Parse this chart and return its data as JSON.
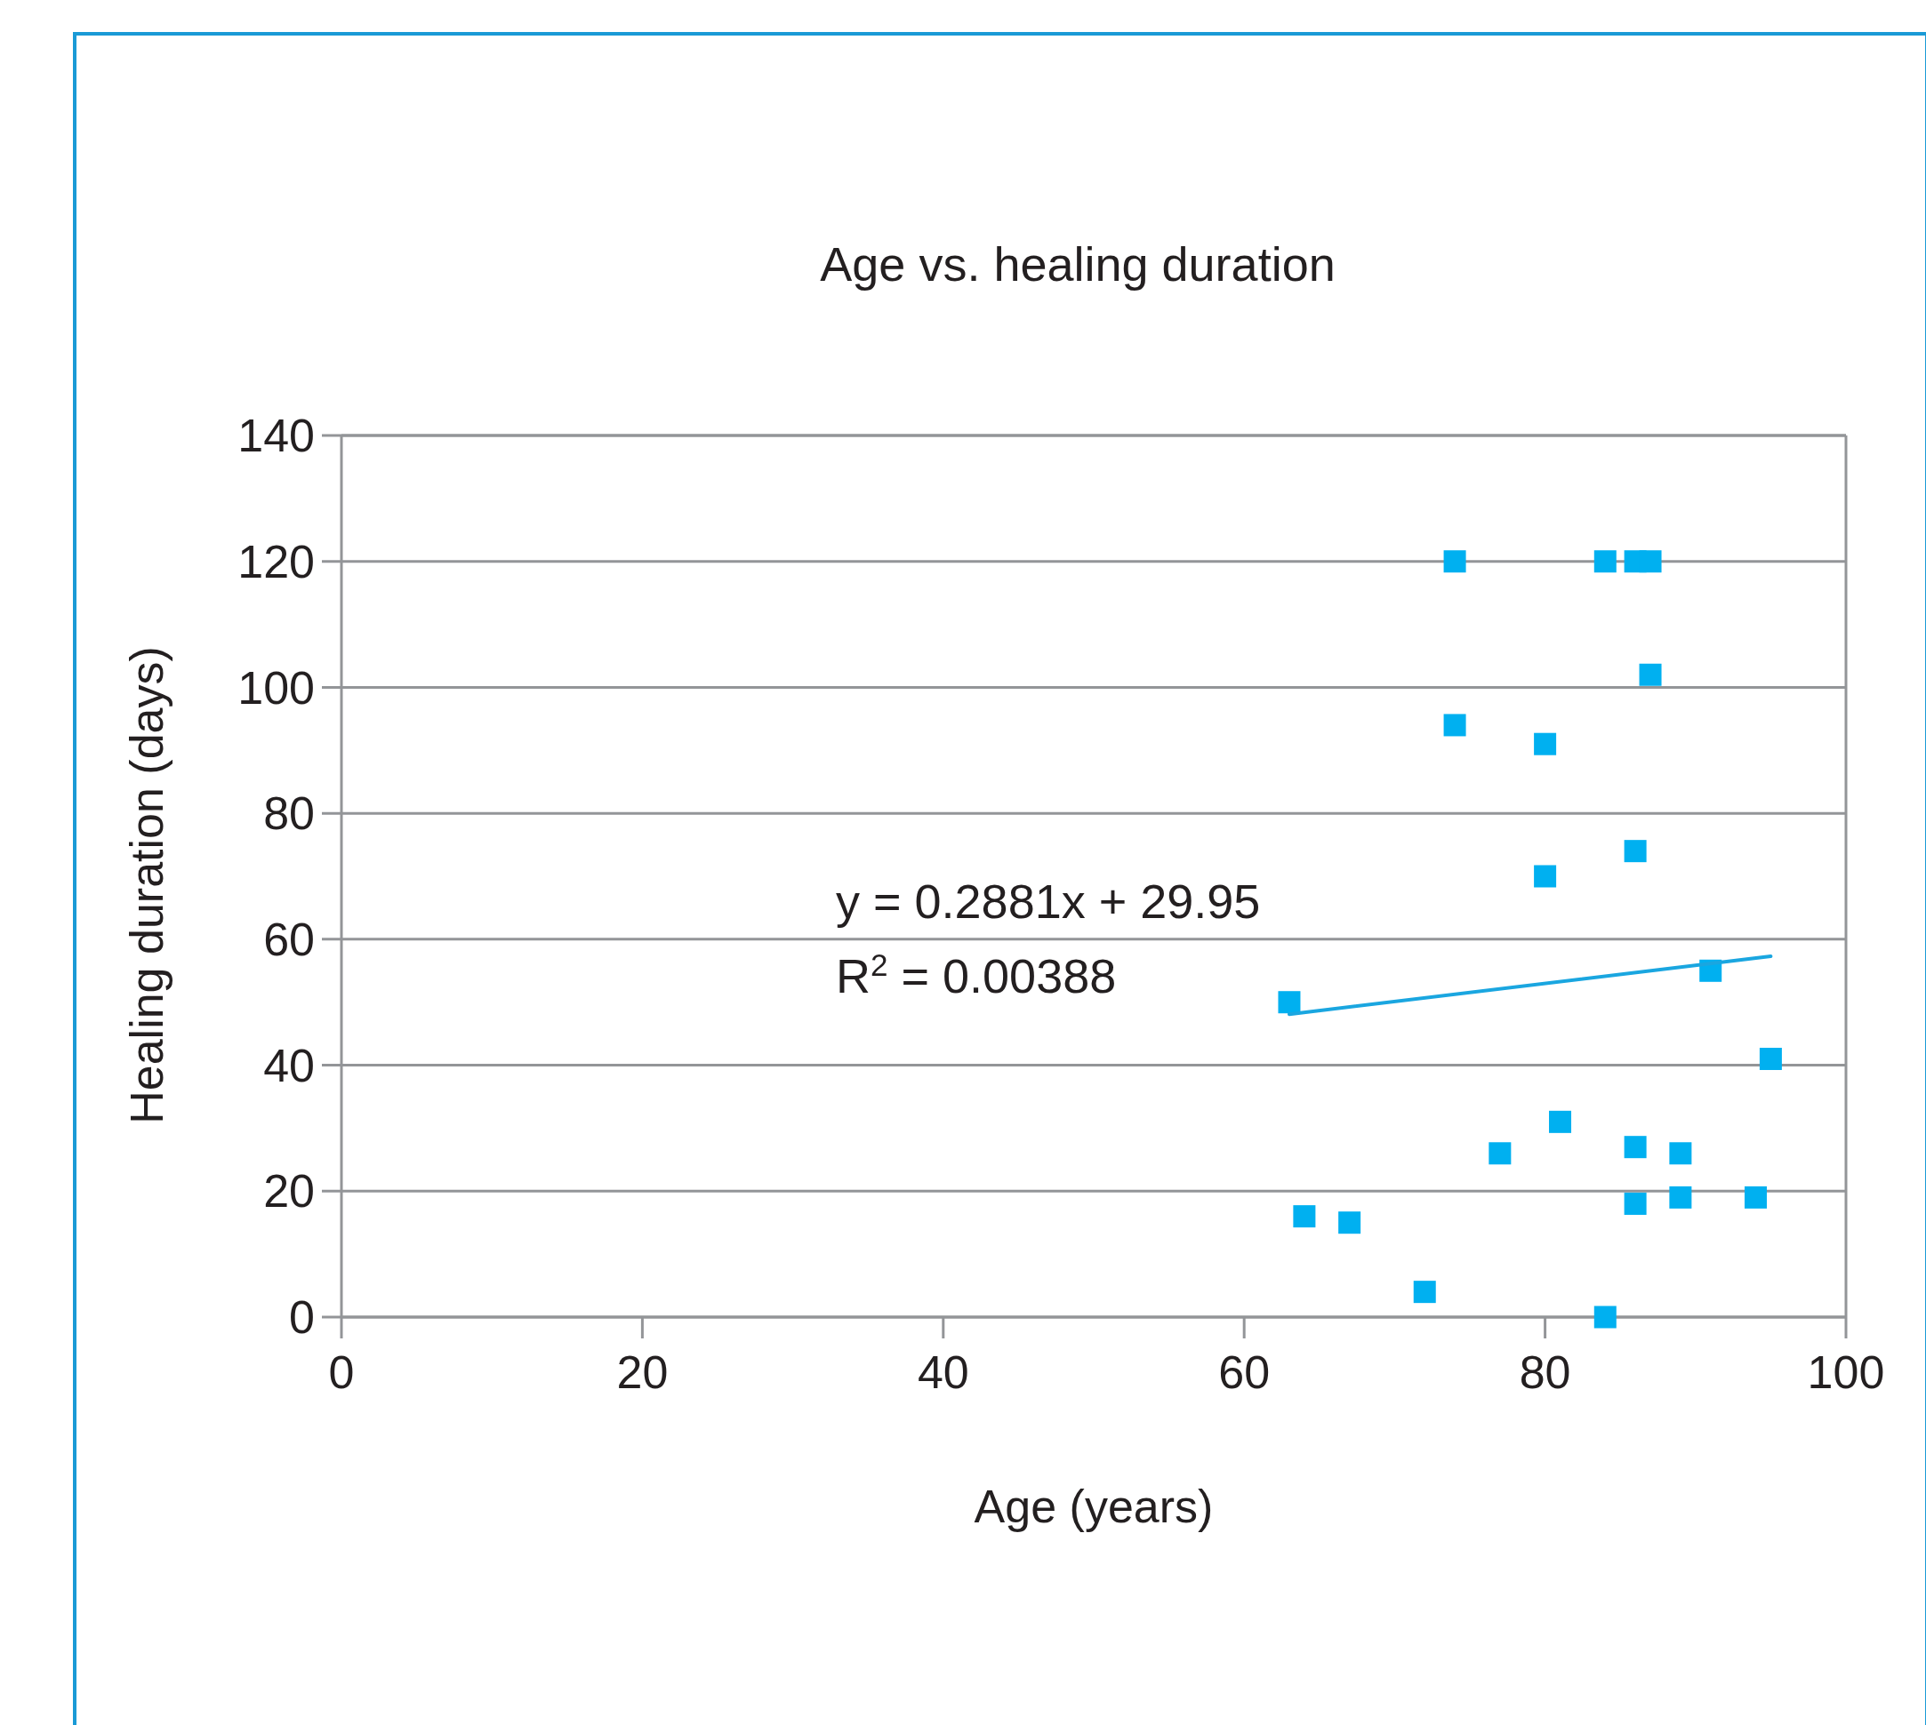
{
  "chart_data": {
    "type": "scatter",
    "title": "Age vs. healing duration",
    "xlabel": "Age (years)",
    "ylabel": "Healing duration (days)",
    "xlim": [
      0,
      100
    ],
    "xticks": [
      0,
      20,
      40,
      60,
      80,
      100
    ],
    "ylim": [
      0,
      140
    ],
    "yticks": [
      0,
      20,
      40,
      60,
      80,
      100,
      120,
      140
    ],
    "grid": "y",
    "series": [
      {
        "marker": "square",
        "color": "#00b0f0",
        "x": [
          74,
          84,
          86,
          87,
          87,
          74,
          80,
          86,
          80,
          63,
          91,
          95,
          81,
          77,
          86,
          89,
          64,
          67,
          86,
          89,
          94,
          72,
          84
        ],
        "values": [
          120,
          120,
          120,
          120,
          102,
          94,
          91,
          74,
          70,
          50,
          55,
          41,
          31,
          26,
          27,
          26,
          16,
          15,
          18,
          19,
          19,
          4,
          0
        ]
      },
      {
        "type": "line",
        "color": "#1aa6e0",
        "x": [
          63,
          95
        ],
        "values": [
          48.1,
          57.3
        ]
      }
    ],
    "annotations": [
      "y = 0.2881x + 29.95",
      "R$^{2}$ = 0.00388"
    ]
  }
}
